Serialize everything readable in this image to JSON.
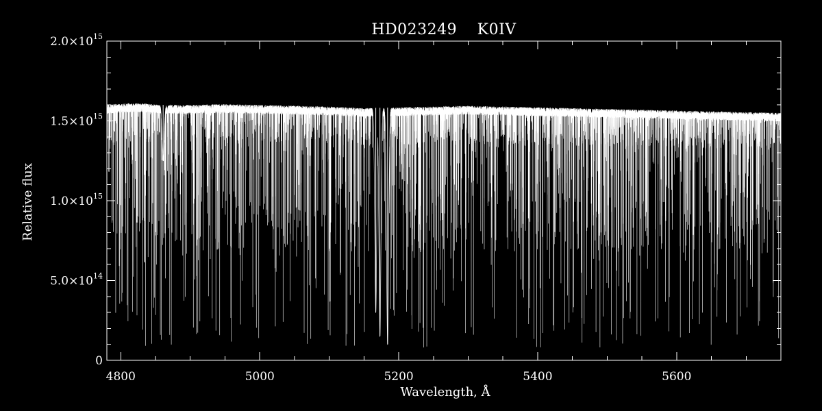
{
  "chart_data": {
    "type": "line",
    "title_parts": [
      "HD023249",
      "K0IV"
    ],
    "xlabel": "Wavelength, Å",
    "ylabel": "Relative flux",
    "xlim": [
      4780,
      5750
    ],
    "ylim": [
      0,
      2000000000000000.0
    ],
    "x_ticks": [
      {
        "value": 4800,
        "label": "4800"
      },
      {
        "value": 5000,
        "label": "5000"
      },
      {
        "value": 5200,
        "label": "5200"
      },
      {
        "value": 5400,
        "label": "5400"
      },
      {
        "value": 5600,
        "label": "5600"
      }
    ],
    "x_minor_step": 50,
    "y_ticks": [
      {
        "value": 0,
        "mantissa": "0",
        "exponent": ""
      },
      {
        "value": 500000000000000.0,
        "mantissa": "5.0×10",
        "exponent": "14"
      },
      {
        "value": 1000000000000000.0,
        "mantissa": "1.0×10",
        "exponent": "15"
      },
      {
        "value": 1500000000000000.0,
        "mantissa": "1.5×10",
        "exponent": "15"
      },
      {
        "value": 2000000000000000.0,
        "mantissa": "2.0×10",
        "exponent": "15"
      }
    ],
    "y_minor_step": 100000000000000.0,
    "grid": false,
    "line_color": "#ffffff",
    "background": "#000000",
    "series": [
      {
        "continuum": {
          "x": [
            4780,
            4800,
            4830,
            4860,
            4900,
            4950,
            5000,
            5050,
            5100,
            5150,
            5200,
            5250,
            5300,
            5350,
            5400,
            5450,
            5500,
            5550,
            5600,
            5650,
            5700,
            5750
          ],
          "y": [
            1600000000000000.0,
            1610000000000000.0,
            1610000000000000.0,
            1600000000000000.0,
            1600000000000000.0,
            1605000000000000.0,
            1600000000000000.0,
            1595000000000000.0,
            1590000000000000.0,
            1580000000000000.0,
            1585000000000000.0,
            1590000000000000.0,
            1595000000000000.0,
            1590000000000000.0,
            1585000000000000.0,
            1580000000000000.0,
            1575000000000000.0,
            1570000000000000.0,
            1565000000000000.0,
            1560000000000000.0,
            1555000000000000.0,
            1550000000000000.0
          ]
        },
        "noted_features": [
          {
            "x": 4861,
            "y": 1250000000000000.0
          },
          {
            "x": 5167,
            "y": 300000000000000.0
          },
          {
            "x": 5173,
            "y": 150000000000000.0
          },
          {
            "x": 5184,
            "y": 100000000000000.0
          }
        ]
      }
    ]
  }
}
